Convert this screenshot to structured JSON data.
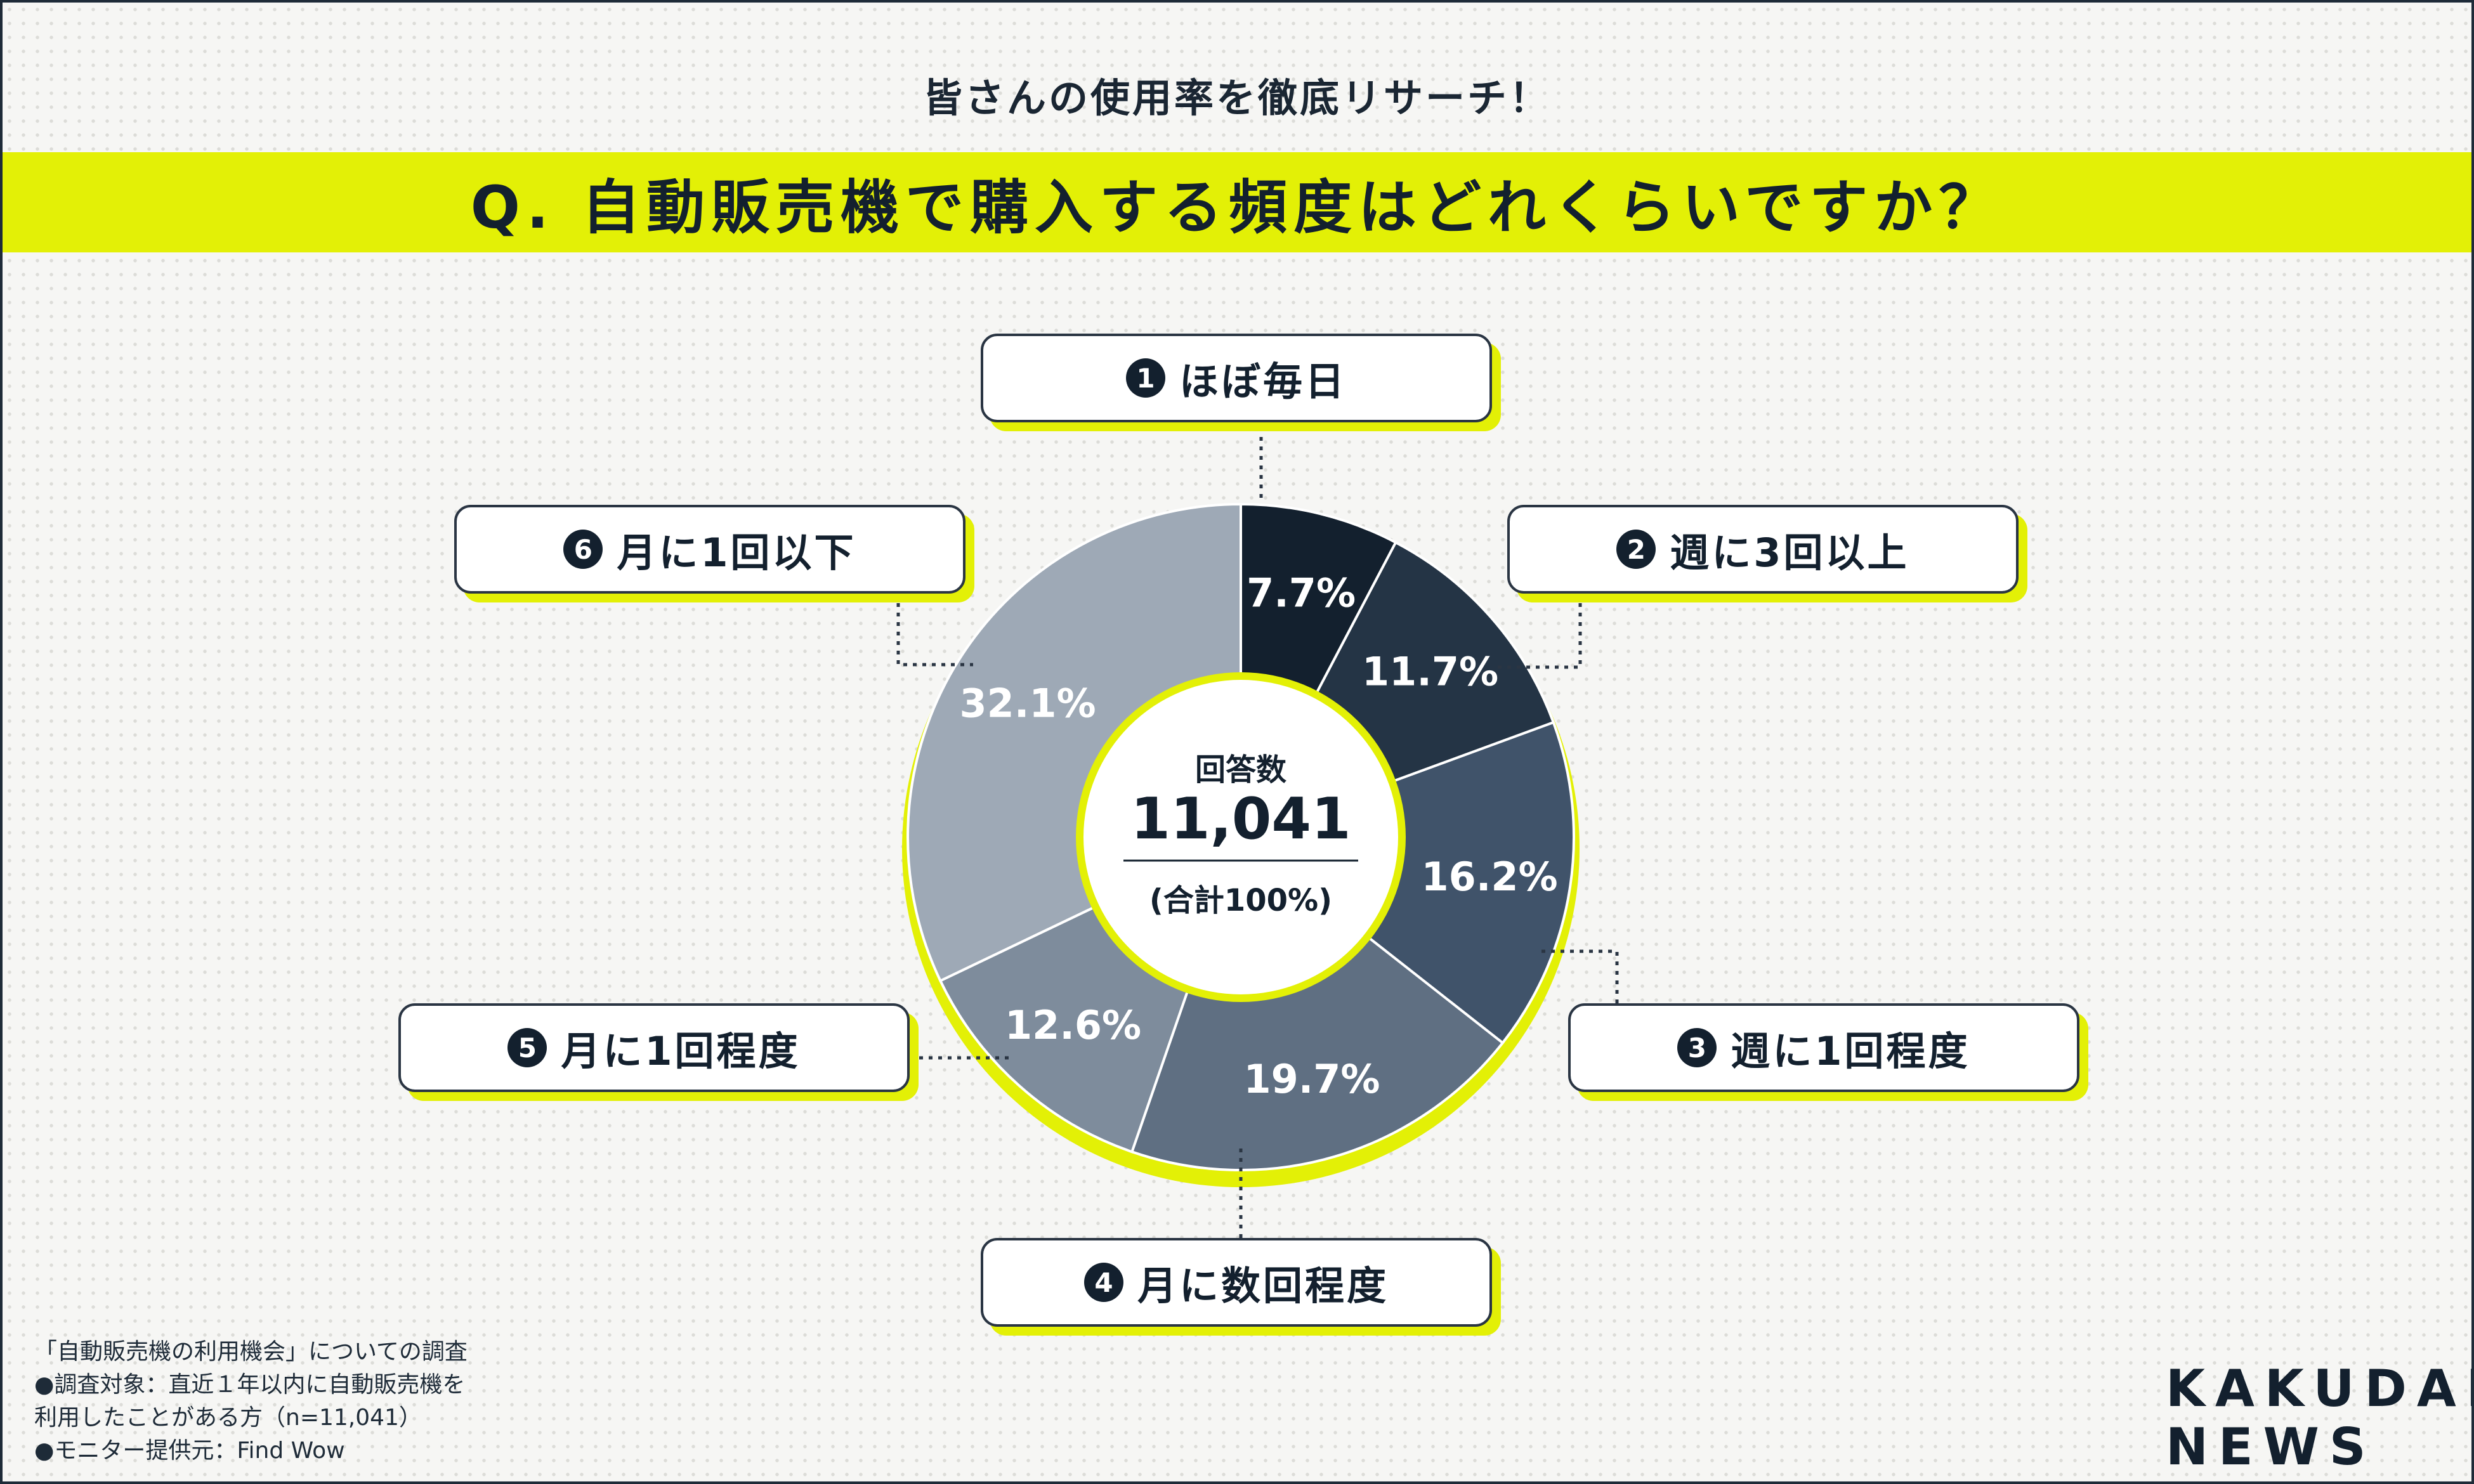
{
  "header": {
    "subtitle": "皆さんの使用率を徹底リサーチ！",
    "question": "Q. 自動販売機で購入する頻度はどれくらいですか？"
  },
  "center": {
    "label": "回答数",
    "value": "11,041",
    "total": "(合計100%)"
  },
  "chart_data": {
    "type": "pie",
    "categories": [
      "ほぼ毎日",
      "週に3回以上",
      "週に1回程度",
      "月に数回程度",
      "月に1回程度",
      "月に1回以下"
    ],
    "values": [
      7.7,
      11.7,
      16.2,
      19.7,
      12.6,
      32.1
    ],
    "value_labels": [
      "7.7%",
      "11.7%",
      "16.2%",
      "19.7%",
      "12.6%",
      "32.1%"
    ],
    "numbers": [
      "1",
      "2",
      "3",
      "4",
      "5",
      "6"
    ],
    "colors": [
      "#13202e",
      "#243445",
      "#40536a",
      "#5f6f82",
      "#7e8c9c",
      "#9ea9b6"
    ],
    "accent": "#e3f006"
  },
  "footnote": {
    "line1": "「自動販売機の利用機会」についての調査",
    "line2": "●調査対象：直近１年以内に自動販売機を",
    "line3": "利用したことがある方（n=11,041）",
    "line4": "●モニター提供元：Find Wow"
  },
  "logo": {
    "line1": "KAKUDAI",
    "line2": "NEWS"
  }
}
